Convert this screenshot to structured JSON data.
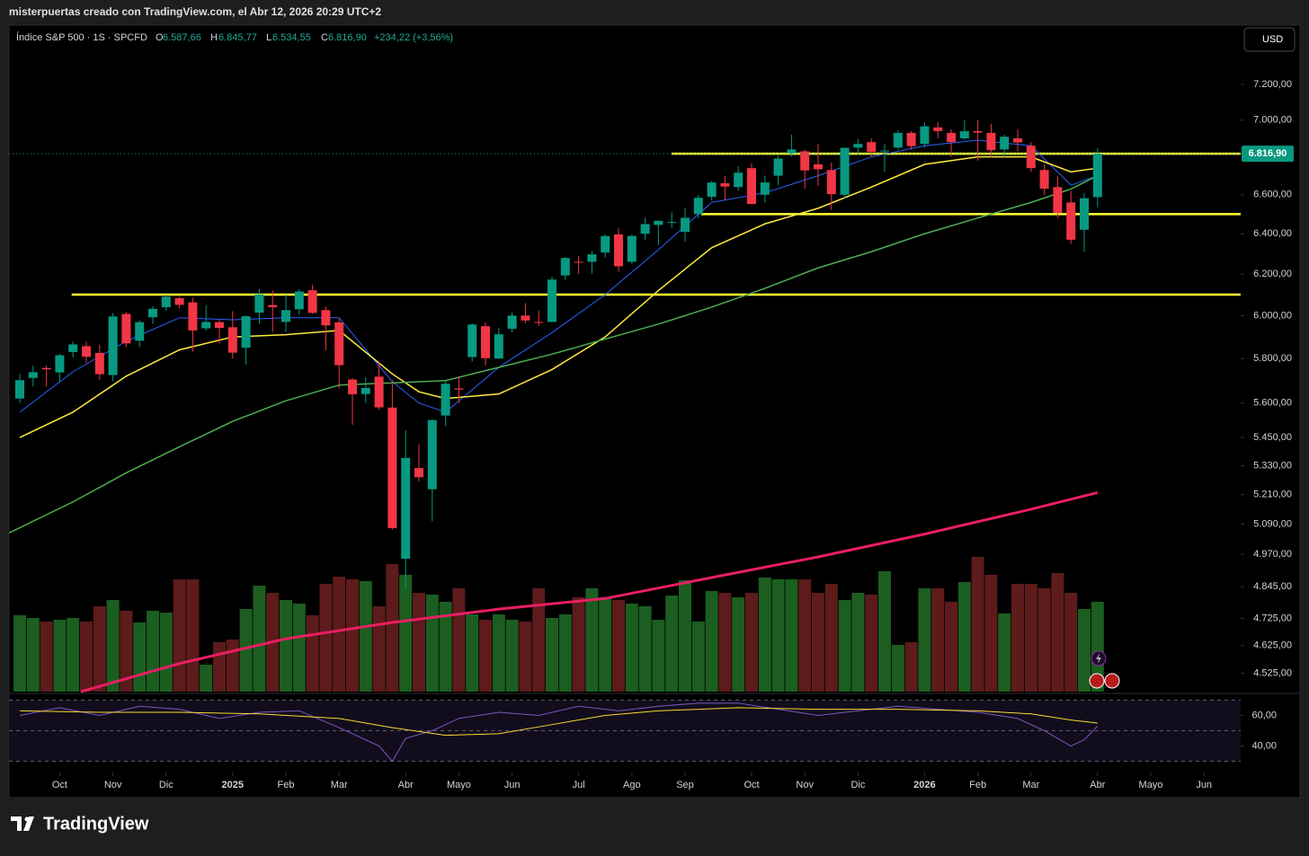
{
  "caption": "misterpuertas creado con TradingView.com, el Abr 12, 2026 20:29 UTC+2",
  "header": {
    "symbol": "Índice S&P 500 · 1S · SPCFD",
    "o_label": "O",
    "open": "6.587,66",
    "h_label": "H",
    "high": "6.845,77",
    "l_label": "L",
    "low": "6.534,55",
    "c_label": "C",
    "close": "6.816,90",
    "change": "+234,22 (+3,56%)"
  },
  "currency": "USD",
  "brand": "TradingView",
  "chart_data": {
    "type": "candlestick",
    "up_color": "#089981",
    "down_color": "#f23645",
    "ohlc": [
      [
        5620,
        5730,
        5600,
        5702
      ],
      [
        5712,
        5767,
        5674,
        5738
      ],
      [
        5757,
        5767,
        5674,
        5751
      ],
      [
        5737,
        5822,
        5696,
        5815
      ],
      [
        5830,
        5878,
        5805,
        5865
      ],
      [
        5857,
        5878,
        5782,
        5808
      ],
      [
        5826,
        5862,
        5703,
        5729
      ],
      [
        5725,
        6012,
        5697,
        5996
      ],
      [
        6008,
        6018,
        5853,
        5870
      ],
      [
        5882,
        5977,
        5853,
        5969
      ],
      [
        5992,
        6044,
        5960,
        6032
      ],
      [
        6040,
        6099,
        6023,
        6090
      ],
      [
        6083,
        6089,
        6034,
        6051
      ],
      [
        6063,
        6085,
        5832,
        5930
      ],
      [
        5940,
        6049,
        5930,
        5970
      ],
      [
        5969,
        5979,
        5869,
        5942
      ],
      [
        5945,
        6021,
        5800,
        5827
      ],
      [
        5850,
        6000,
        5773,
        5997
      ],
      [
        6014,
        6128,
        5960,
        6101
      ],
      [
        6050,
        6120,
        5923,
        6040
      ],
      [
        5970,
        6101,
        5923,
        6026
      ],
      [
        6030,
        6127,
        6003,
        6115
      ],
      [
        6121,
        6147,
        6008,
        6013
      ],
      [
        6026,
        6043,
        5837,
        5954
      ],
      [
        5968,
        5986,
        5666,
        5770
      ],
      [
        5705,
        5711,
        5504,
        5639
      ],
      [
        5640,
        5715,
        5600,
        5667
      ],
      [
        5718,
        5786,
        5570,
        5581
      ],
      [
        5580,
        5703,
        5069,
        5074
      ],
      [
        4953,
        5481,
        4835,
        5363
      ],
      [
        5320,
        5420,
        5265,
        5282
      ],
      [
        5232,
        5528,
        5101,
        5525
      ],
      [
        5545,
        5700,
        5500,
        5686
      ],
      [
        5665,
        5720,
        5600,
        5660
      ],
      [
        5807,
        5964,
        5786,
        5958
      ],
      [
        5950,
        5968,
        5767,
        5802
      ],
      [
        5800,
        5944,
        5800,
        5912
      ],
      [
        5938,
        6016,
        5920,
        6000
      ],
      [
        6000,
        6059,
        5963,
        5977
      ],
      [
        5970,
        6024,
        5952,
        5967
      ],
      [
        5970,
        6187,
        5970,
        6173
      ],
      [
        6193,
        6284,
        6171,
        6279
      ],
      [
        6260,
        6290,
        6201,
        6259
      ],
      [
        6260,
        6315,
        6201,
        6297
      ],
      [
        6306,
        6395,
        6281,
        6389
      ],
      [
        6397,
        6427,
        6212,
        6238
      ],
      [
        6260,
        6395,
        6250,
        6389
      ],
      [
        6400,
        6481,
        6370,
        6449
      ],
      [
        6445,
        6467,
        6343,
        6466
      ],
      [
        6457,
        6508,
        6430,
        6460
      ],
      [
        6410,
        6532,
        6360,
        6481
      ],
      [
        6500,
        6600,
        6480,
        6584
      ],
      [
        6590,
        6671,
        6570,
        6664
      ],
      [
        6660,
        6699,
        6570,
        6643
      ],
      [
        6640,
        6750,
        6620,
        6716
      ],
      [
        6740,
        6765,
        6550,
        6552
      ],
      [
        6600,
        6700,
        6560,
        6664
      ],
      [
        6700,
        6807,
        6650,
        6791
      ],
      [
        6820,
        6920,
        6800,
        6840
      ],
      [
        6830,
        6840,
        6631,
        6728
      ],
      [
        6760,
        6870,
        6646,
        6734
      ],
      [
        6730,
        6770,
        6521,
        6603
      ],
      [
        6600,
        6850,
        6580,
        6849
      ],
      [
        6850,
        6895,
        6810,
        6870
      ],
      [
        6880,
        6900,
        6800,
        6827
      ],
      [
        6830,
        6870,
        6720,
        6834
      ],
      [
        6850,
        6945,
        6840,
        6930
      ],
      [
        6930,
        6940,
        6840,
        6858
      ],
      [
        6870,
        6986,
        6850,
        6966
      ],
      [
        6960,
        6990,
        6900,
        6940
      ],
      [
        6930,
        6950,
        6800,
        6880
      ],
      [
        6900,
        7000,
        6890,
        6939
      ],
      [
        6940,
        7002,
        6780,
        6932
      ],
      [
        6930,
        6980,
        6800,
        6836
      ],
      [
        6840,
        6920,
        6800,
        6909
      ],
      [
        6900,
        6950,
        6830,
        6878
      ],
      [
        6860,
        6880,
        6720,
        6740
      ],
      [
        6730,
        6760,
        6600,
        6632
      ],
      [
        6640,
        6700,
        6480,
        6506
      ],
      [
        6560,
        6620,
        6350,
        6370
      ],
      [
        6420,
        6610,
        6310,
        6582
      ],
      [
        6587.66,
        6845.77,
        6534.55,
        6816.9
      ]
    ],
    "ylim": [
      4460,
      7534
    ],
    "log_scale": true,
    "yticks": [
      {
        "value": 4525,
        "label": "4.525,00"
      },
      {
        "value": 4625,
        "label": "4.625,00"
      },
      {
        "value": 4725,
        "label": "4.725,00"
      },
      {
        "value": 4845,
        "label": "4.845,00"
      },
      {
        "value": 4970,
        "label": "4.970,00"
      },
      {
        "value": 5090,
        "label": "5.090,00"
      },
      {
        "value": 5210,
        "label": "5.210,00"
      },
      {
        "value": 5330,
        "label": "5.330,00"
      },
      {
        "value": 5450,
        "label": "5.450,00"
      },
      {
        "value": 5600,
        "label": "5.600,00"
      },
      {
        "value": 5800,
        "label": "5.800,00"
      },
      {
        "value": 6000,
        "label": "6.000,00"
      },
      {
        "value": 6200,
        "label": "6.200,00"
      },
      {
        "value": 6400,
        "label": "6.400,00"
      },
      {
        "value": 6600,
        "label": "6.600,00"
      },
      {
        "value": 7000,
        "label": "7.000,00"
      },
      {
        "value": 7200,
        "label": "7.200,00"
      }
    ],
    "xticks": [
      {
        "value": 3,
        "label": "Oct"
      },
      {
        "value": 7,
        "label": "Nov"
      },
      {
        "value": 11,
        "label": "Dic"
      },
      {
        "value": 16,
        "label": "2025"
      },
      {
        "value": 20,
        "label": "Feb"
      },
      {
        "value": 24,
        "label": "Mar"
      },
      {
        "value": 29,
        "label": "Abr"
      },
      {
        "value": 33,
        "label": "Mayo"
      },
      {
        "value": 37,
        "label": "Jun"
      },
      {
        "value": 42,
        "label": "Jul"
      },
      {
        "value": 46,
        "label": "Ago"
      },
      {
        "value": 50,
        "label": "Sep"
      },
      {
        "value": 55,
        "label": "Oct"
      },
      {
        "value": 59,
        "label": "Nov"
      },
      {
        "value": 63,
        "label": "Dic"
      },
      {
        "value": 68,
        "label": "2026"
      },
      {
        "value": 72,
        "label": "Feb"
      },
      {
        "value": 76,
        "label": "Mar"
      },
      {
        "value": 81,
        "label": "Abr"
      },
      {
        "value": 85,
        "label": "Mayo"
      },
      {
        "value": 89,
        "label": "Jun"
      }
    ],
    "last_price_label": "6.816,90",
    "overlays": [
      {
        "color": "#2962ff",
        "width": 1,
        "x": [
          0,
          4,
          8,
          12,
          16,
          20,
          24,
          28,
          30,
          32,
          36,
          40,
          44,
          48,
          52,
          56,
          60,
          64,
          68,
          72,
          76,
          79,
          81
        ],
        "values": [
          5560,
          5740,
          5880,
          5990,
          5980,
          5990,
          5990,
          5695,
          5600,
          5560,
          5760,
          5920,
          6100,
          6320,
          6560,
          6610,
          6700,
          6800,
          6860,
          6890,
          6860,
          6650,
          6700
        ]
      },
      {
        "color": "#ffeb3b",
        "width": 1.5,
        "x": [
          0,
          4,
          8,
          12,
          16,
          20,
          24,
          28,
          30,
          32,
          36,
          40,
          44,
          48,
          52,
          56,
          60,
          64,
          68,
          72,
          76,
          79,
          81
        ],
        "values": [
          5450,
          5560,
          5720,
          5840,
          5900,
          5910,
          5930,
          5730,
          5650,
          5620,
          5640,
          5750,
          5900,
          6120,
          6330,
          6450,
          6530,
          6640,
          6760,
          6800,
          6800,
          6720,
          6740
        ]
      },
      {
        "color": "#4caf50",
        "width": 1.5,
        "x": [
          -1,
          4,
          8,
          12,
          16,
          20,
          24,
          28,
          32,
          36,
          40,
          44,
          48,
          52,
          56,
          60,
          64,
          68,
          72,
          76,
          79,
          81
        ],
        "values": [
          5050,
          5180,
          5300,
          5410,
          5520,
          5610,
          5680,
          5690,
          5700,
          5760,
          5820,
          5890,
          5960,
          6040,
          6130,
          6230,
          6310,
          6400,
          6480,
          6560,
          6630,
          6700
        ]
      },
      {
        "color": "#e91e63",
        "width": 3,
        "x": [
          4.6,
          12,
          20,
          28,
          36,
          44,
          52,
          60,
          68,
          76,
          81
        ],
        "values": [
          4460,
          4560,
          4650,
          4710,
          4760,
          4800,
          4880,
          4960,
          5050,
          5150,
          5218
        ]
      }
    ],
    "hlines": [
      {
        "value": 6817,
        "from": 49
      },
      {
        "value": 6500,
        "from": 51.2
      },
      {
        "value": 6100,
        "from": 3.9
      }
    ],
    "hline_color": "#ffff33",
    "volume": {
      "up_color": "#1b5e20",
      "down_color": "#5d1b1b",
      "lim": [
        0,
        740
      ],
      "values": [
        85,
        82,
        78,
        80,
        82,
        78,
        95,
        102,
        90,
        77,
        90,
        88,
        125,
        125,
        30,
        55,
        58,
        92,
        118,
        110,
        102,
        98,
        85,
        120,
        128,
        125,
        123,
        95,
        142,
        130,
        110,
        108,
        100,
        115,
        86,
        80,
        86,
        80,
        78,
        115,
        82,
        86,
        105,
        115,
        105,
        102,
        98,
        95,
        80,
        107,
        124,
        78,
        112,
        110,
        105,
        110,
        127,
        125,
        125,
        125,
        110,
        120,
        102,
        110,
        108,
        134,
        52,
        55,
        115,
        115,
        100,
        122,
        150,
        130,
        87,
        120,
        120,
        115,
        132,
        110,
        92,
        100
      ]
    },
    "rsi": {
      "ylim": [
        28,
        72
      ],
      "bands": [
        70,
        50,
        30
      ],
      "yticks": [
        {
          "value": 60,
          "label": "60,00"
        },
        {
          "value": 40,
          "label": "40,00"
        }
      ],
      "line": {
        "color": "#7e57c2",
        "x": [
          0,
          3,
          6,
          9,
          12,
          15,
          18,
          21,
          24,
          27,
          28,
          29,
          31,
          33,
          36,
          39,
          42,
          45,
          48,
          51,
          54,
          57,
          60,
          63,
          66,
          69,
          72,
          75,
          77,
          79,
          80,
          81
        ],
        "values": [
          60,
          65,
          60,
          66,
          64,
          58,
          62,
          63,
          52,
          40,
          30,
          45,
          50,
          58,
          62,
          60,
          66,
          63,
          66,
          68,
          68,
          64,
          60,
          63,
          66,
          64,
          62,
          58,
          50,
          40,
          44,
          53
        ]
      },
      "ma": {
        "color": "#fdd835",
        "x": [
          0,
          6,
          12,
          18,
          24,
          28,
          32,
          36,
          40,
          44,
          48,
          54,
          60,
          66,
          72,
          76,
          79,
          81
        ],
        "values": [
          63,
          62,
          62,
          61,
          58,
          52,
          47,
          48,
          54,
          60,
          63,
          65,
          64,
          64,
          63,
          61,
          57,
          55
        ]
      }
    }
  }
}
